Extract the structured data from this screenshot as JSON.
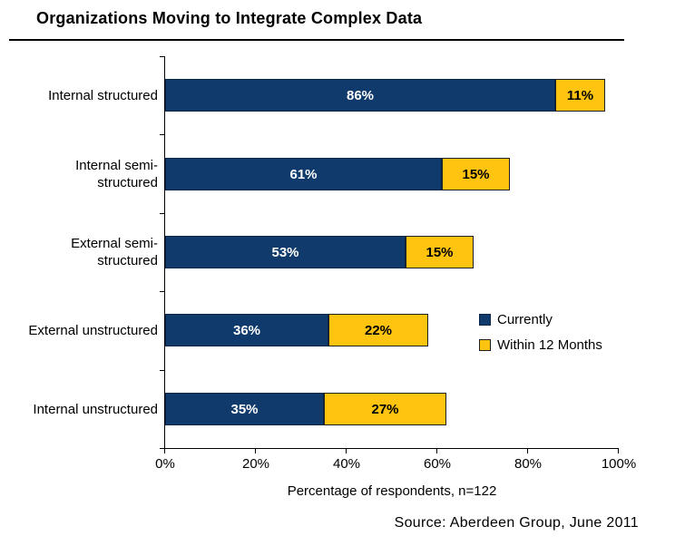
{
  "header": {
    "title": "Organizations Moving to Integrate Complex Data"
  },
  "chart_data": {
    "type": "bar",
    "orientation": "horizontal",
    "stacked": true,
    "title": "Organizations Moving to Integrate Complex Data",
    "categories": [
      "Internal structured",
      "Internal semi-\nstructured",
      "External semi-\nstructured",
      "External unstructured",
      "Internal unstructured"
    ],
    "series": [
      {
        "name": "Currently",
        "color": "#0f3a6b",
        "border_color": "#0a2748",
        "label_color": "#ffffff",
        "values": [
          86,
          61,
          53,
          36,
          35
        ]
      },
      {
        "name": "Within 12 Months",
        "color": "#ffc410",
        "border_color": "#1f1f1f",
        "label_color": "#000000",
        "values": [
          11,
          15,
          15,
          22,
          27
        ]
      }
    ],
    "xlabel": "Percentage of respondents, n=122",
    "xticks": [
      "0%",
      "20%",
      "40%",
      "60%",
      "80%",
      "100%"
    ],
    "xlim": [
      0,
      100
    ],
    "grid": false,
    "legend_position": "right-middle",
    "value_suffix": "%"
  },
  "footer": {
    "source": "Source: Aberdeen Group, June 2011"
  }
}
